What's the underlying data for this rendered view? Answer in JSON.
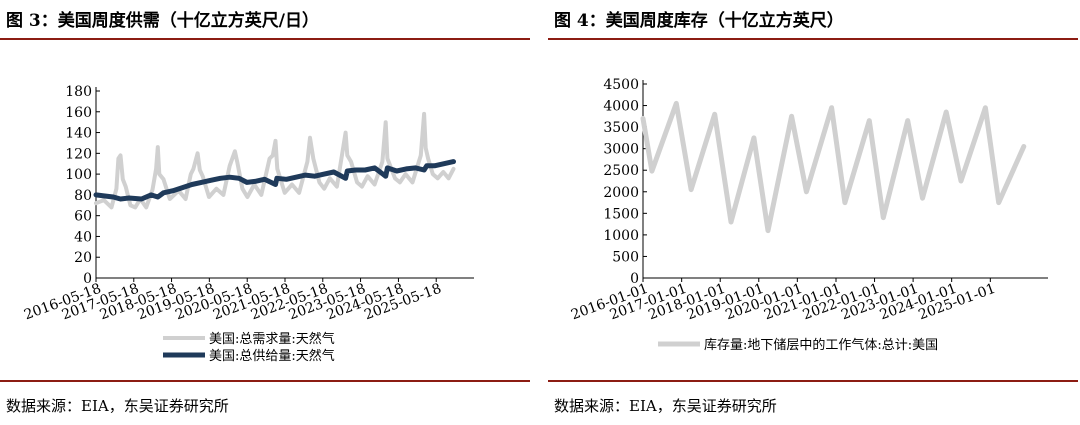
{
  "left": {
    "title": "图 3：美国周度供需（十亿立方英尺/日）",
    "source": "数据来源：EIA，东吴证券研究所",
    "chart_data": {
      "type": "line",
      "ylim": [
        0,
        180
      ],
      "yticks": [
        0,
        20,
        40,
        60,
        80,
        100,
        120,
        140,
        160,
        180
      ],
      "xlim": [
        "2016-05-18",
        "2026-05-18"
      ],
      "xticks": [
        "2016-05-18",
        "2017-05-18",
        "2018-05-18",
        "2019-05-18",
        "2020-05-18",
        "2021-05-18",
        "2022-05-18",
        "2023-05-18",
        "2024-05-18",
        "2025-05-18"
      ],
      "legend_position": "bottom",
      "series": [
        {
          "name": "美国:总需求量:天然气",
          "color": "#d0d0d0",
          "points": [
            [
              "2016-05-18",
              72
            ],
            [
              "2016-08-01",
              75
            ],
            [
              "2016-10-15",
              68
            ],
            [
              "2016-12-01",
              86
            ],
            [
              "2016-12-20",
              115
            ],
            [
              "2017-01-10",
              118
            ],
            [
              "2017-02-01",
              95
            ],
            [
              "2017-03-01",
              88
            ],
            [
              "2017-04-15",
              70
            ],
            [
              "2017-06-01",
              68
            ],
            [
              "2017-07-20",
              76
            ],
            [
              "2017-09-15",
              68
            ],
            [
              "2017-11-15",
              85
            ],
            [
              "2017-12-20",
              105
            ],
            [
              "2018-01-05",
              126
            ],
            [
              "2018-01-20",
              100
            ],
            [
              "2018-03-01",
              95
            ],
            [
              "2018-05-01",
              76
            ],
            [
              "2018-07-25",
              84
            ],
            [
              "2018-10-01",
              76
            ],
            [
              "2018-11-20",
              100
            ],
            [
              "2018-12-15",
              105
            ],
            [
              "2019-01-25",
              120
            ],
            [
              "2019-02-15",
              104
            ],
            [
              "2019-03-15",
              98
            ],
            [
              "2019-05-15",
              78
            ],
            [
              "2019-07-25",
              86
            ],
            [
              "2019-10-01",
              80
            ],
            [
              "2019-12-01",
              108
            ],
            [
              "2020-01-20",
              122
            ],
            [
              "2020-02-15",
              110
            ],
            [
              "2020-04-01",
              86
            ],
            [
              "2020-05-20",
              78
            ],
            [
              "2020-07-25",
              90
            ],
            [
              "2020-10-01",
              80
            ],
            [
              "2020-12-20",
              115
            ],
            [
              "2021-01-20",
              118
            ],
            [
              "2021-02-15",
              132
            ],
            [
              "2021-03-05",
              105
            ],
            [
              "2021-05-15",
              82
            ],
            [
              "2021-07-25",
              90
            ],
            [
              "2021-10-01",
              82
            ],
            [
              "2021-12-20",
              112
            ],
            [
              "2022-01-15",
              135
            ],
            [
              "2022-02-15",
              115
            ],
            [
              "2022-04-15",
              92
            ],
            [
              "2022-06-01",
              86
            ],
            [
              "2022-07-25",
              96
            ],
            [
              "2022-10-01",
              88
            ],
            [
              "2022-12-24",
              140
            ],
            [
              "2023-01-10",
              118
            ],
            [
              "2023-02-15",
              112
            ],
            [
              "2023-04-15",
              92
            ],
            [
              "2023-06-01",
              88
            ],
            [
              "2023-07-25",
              98
            ],
            [
              "2023-10-01",
              90
            ],
            [
              "2023-12-15",
              112
            ],
            [
              "2024-01-16",
              150
            ],
            [
              "2024-02-01",
              115
            ],
            [
              "2024-04-15",
              96
            ],
            [
              "2024-06-01",
              92
            ],
            [
              "2024-07-25",
              100
            ],
            [
              "2024-10-01",
              92
            ],
            [
              "2024-12-20",
              118
            ],
            [
              "2025-01-21",
              158
            ],
            [
              "2025-02-05",
              125
            ],
            [
              "2025-03-01",
              115
            ],
            [
              "2025-04-15",
              100
            ],
            [
              "2025-06-01",
              96
            ],
            [
              "2025-07-25",
              102
            ],
            [
              "2025-09-15",
              96
            ],
            [
              "2025-11-01",
              105
            ]
          ]
        },
        {
          "name": "美国:总供给量:天然气",
          "color": "#1f3a5a",
          "points": [
            [
              "2016-05-18",
              80
            ],
            [
              "2016-08-01",
              79
            ],
            [
              "2016-11-01",
              78
            ],
            [
              "2017-01-10",
              76
            ],
            [
              "2017-04-01",
              77
            ],
            [
              "2017-08-01",
              76
            ],
            [
              "2017-11-01",
              80
            ],
            [
              "2018-01-05",
              78
            ],
            [
              "2018-03-01",
              82
            ],
            [
              "2018-06-01",
              84
            ],
            [
              "2018-09-01",
              87
            ],
            [
              "2018-12-01",
              90
            ],
            [
              "2019-03-01",
              92
            ],
            [
              "2019-06-01",
              94
            ],
            [
              "2019-09-01",
              96
            ],
            [
              "2019-12-01",
              97
            ],
            [
              "2020-03-01",
              96
            ],
            [
              "2020-05-15",
              92
            ],
            [
              "2020-08-01",
              93
            ],
            [
              "2020-11-01",
              95
            ],
            [
              "2021-02-15",
              90
            ],
            [
              "2021-03-01",
              96
            ],
            [
              "2021-06-01",
              95
            ],
            [
              "2021-09-01",
              97
            ],
            [
              "2021-12-01",
              99
            ],
            [
              "2022-03-01",
              98
            ],
            [
              "2022-06-01",
              100
            ],
            [
              "2022-09-01",
              102
            ],
            [
              "2022-12-24",
              96
            ],
            [
              "2023-01-10",
              103
            ],
            [
              "2023-04-01",
              104
            ],
            [
              "2023-07-01",
              104
            ],
            [
              "2023-10-01",
              106
            ],
            [
              "2024-01-16",
              98
            ],
            [
              "2024-02-01",
              106
            ],
            [
              "2024-05-01",
              103
            ],
            [
              "2024-08-01",
              105
            ],
            [
              "2024-11-01",
              106
            ],
            [
              "2025-01-21",
              104
            ],
            [
              "2025-02-15",
              108
            ],
            [
              "2025-05-01",
              108
            ],
            [
              "2025-08-01",
              110
            ],
            [
              "2025-11-01",
              112
            ]
          ]
        }
      ]
    }
  },
  "right": {
    "title": "图 4：美国周度库存（十亿立方英尺）",
    "source": "数据来源：EIA，东吴证券研究所",
    "chart_data": {
      "type": "line",
      "ylim": [
        0,
        4500
      ],
      "yticks": [
        0,
        500,
        1000,
        1500,
        2000,
        2500,
        3000,
        3500,
        4000,
        4500
      ],
      "xlim": [
        "2016-01-01",
        "2026-07-01"
      ],
      "xticks": [
        "2016-01-01",
        "2017-01-01",
        "2018-01-01",
        "2019-01-01",
        "2020-01-01",
        "2021-01-01",
        "2022-01-01",
        "2023-01-01",
        "2024-01-01",
        "2025-01-01"
      ],
      "legend_position": "bottom",
      "series": [
        {
          "name": "库存量:地下储层中的工作气体:总计:美国",
          "color": "#d0d0d0",
          "points": [
            [
              "2016-01-01",
              3700
            ],
            [
              "2016-03-25",
              2480
            ],
            [
              "2016-11-11",
              4050
            ],
            [
              "2017-03-31",
              2050
            ],
            [
              "2017-11-10",
              3800
            ],
            [
              "2018-04-13",
              1300
            ],
            [
              "2018-11-16",
              3250
            ],
            [
              "2019-03-29",
              1100
            ],
            [
              "2019-11-08",
              3750
            ],
            [
              "2020-03-27",
              2000
            ],
            [
              "2020-11-20",
              3950
            ],
            [
              "2021-03-26",
              1750
            ],
            [
              "2021-11-12",
              3650
            ],
            [
              "2022-03-25",
              1400
            ],
            [
              "2022-11-11",
              3650
            ],
            [
              "2023-03-31",
              1850
            ],
            [
              "2023-11-10",
              3850
            ],
            [
              "2024-03-29",
              2250
            ],
            [
              "2024-11-15",
              3950
            ],
            [
              "2025-03-21",
              1750
            ],
            [
              "2025-11-14",
              3050
            ]
          ]
        }
      ]
    }
  }
}
